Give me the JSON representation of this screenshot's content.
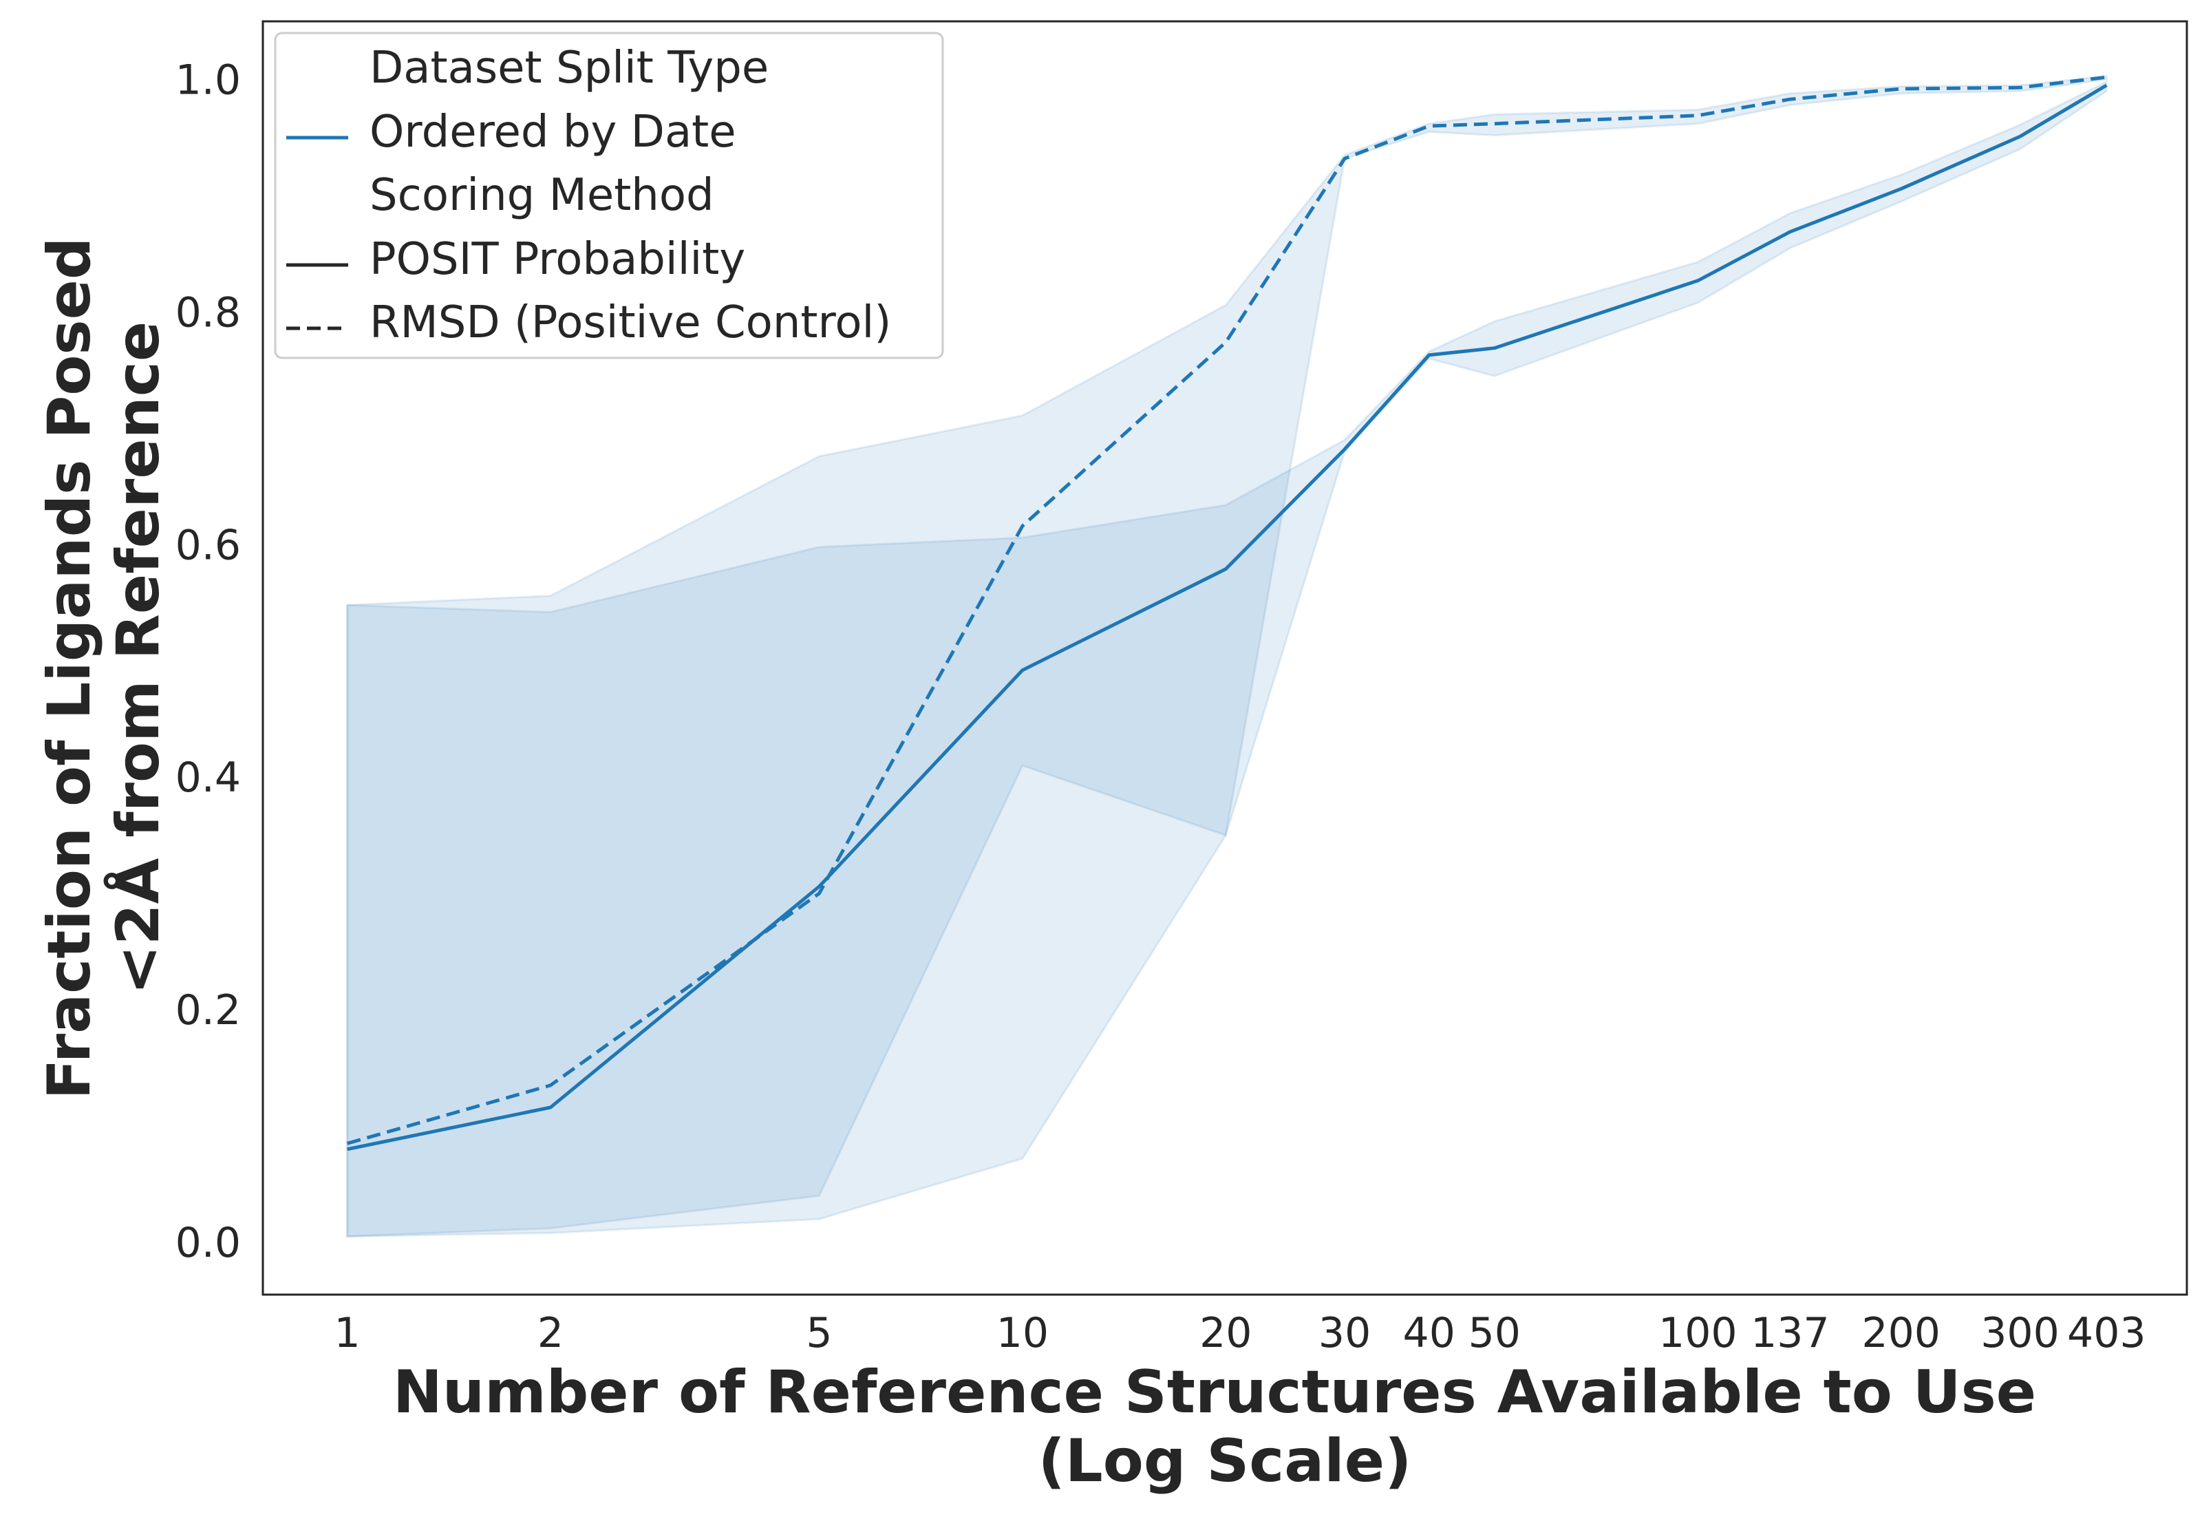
{
  "chart_data": {
    "type": "line",
    "xscale": "log",
    "x_ticks": [
      1,
      2,
      5,
      10,
      20,
      30,
      40,
      50,
      100,
      137,
      200,
      300,
      403
    ],
    "x_tick_labels": [
      "1",
      "2",
      "5",
      "10",
      "20",
      "30",
      "40",
      "50",
      "100",
      "137",
      "200",
      "300",
      "403"
    ],
    "y_ticks": [
      0.0,
      0.2,
      0.4,
      0.6,
      0.8,
      1.0
    ],
    "y_tick_labels": [
      "0.0",
      "0.2",
      "0.4",
      "0.6",
      "0.8",
      "1.0"
    ],
    "xlim": [
      0.75,
      530
    ],
    "ylim": [
      -0.045,
      1.05
    ],
    "xlabel": "Number of Reference Structures Available to Use\n(Log Scale)",
    "ylabel": "Fraction of Ligands Posed\n<2Å from Reference",
    "grid": false,
    "legend_position": "top-left",
    "series_color": "#1f77b4",
    "series": [
      {
        "name": "POSIT Probability",
        "dash": "solid",
        "x": [
          1,
          2,
          5,
          10,
          20,
          30,
          40,
          50,
          100,
          137,
          200,
          300,
          403
        ],
        "y": [
          0.08,
          0.116,
          0.306,
          0.492,
          0.579,
          0.682,
          0.763,
          0.769,
          0.827,
          0.869,
          0.906,
          0.951,
          0.995
        ],
        "ci_low": [
          0.005,
          0.012,
          0.04,
          0.41,
          0.35,
          0.68,
          0.76,
          0.745,
          0.808,
          0.855,
          0.895,
          0.94,
          0.99
        ],
        "ci_high": [
          0.548,
          0.542,
          0.598,
          0.606,
          0.634,
          0.69,
          0.766,
          0.792,
          0.843,
          0.885,
          0.918,
          0.961,
          0.998
        ]
      },
      {
        "name": "RMSD (Positive Control)",
        "dash": "dashed",
        "x": [
          1,
          2,
          5,
          10,
          20,
          30,
          40,
          50,
          100,
          137,
          200,
          300,
          403
        ],
        "y": [
          0.085,
          0.135,
          0.3,
          0.616,
          0.774,
          0.932,
          0.96,
          0.962,
          0.969,
          0.983,
          0.992,
          0.993,
          1.002
        ],
        "ci_low": [
          0.005,
          0.008,
          0.02,
          0.072,
          0.35,
          0.932,
          0.955,
          0.952,
          0.962,
          0.978,
          0.988,
          0.99,
          1.0
        ],
        "ci_high": [
          0.548,
          0.556,
          0.676,
          0.711,
          0.806,
          0.935,
          0.962,
          0.97,
          0.974,
          0.988,
          0.994,
          0.995,
          1.003
        ]
      }
    ],
    "legend": {
      "title_1": "Dataset Split Type",
      "entry_1": "Ordered by Date",
      "title_2": "Scoring Method",
      "entry_2": "POSIT Probability",
      "entry_3": "RMSD (Positive Control)"
    }
  }
}
